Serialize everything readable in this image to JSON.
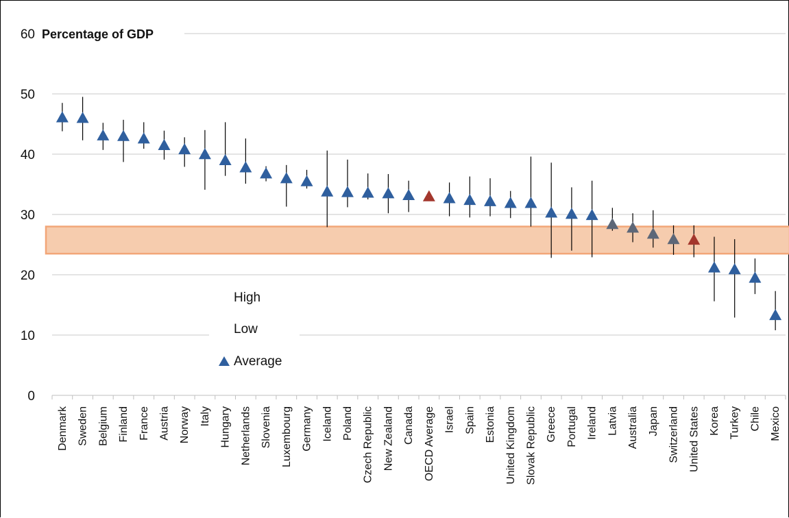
{
  "chart_data": {
    "type": "scatter",
    "title": "Percentage of GDP",
    "xlabel": "",
    "ylabel": "",
    "ylim": [
      0,
      60
    ],
    "yticks": [
      0,
      10,
      20,
      30,
      40,
      50,
      60
    ],
    "grid": true,
    "legend_placement": "lower-left",
    "legend": [
      "High",
      "Low",
      "Average"
    ],
    "highlight_band": [
      23.5,
      28
    ],
    "colors": {
      "marker": "#2f5f9e",
      "highlight_marker": "#a3372d",
      "muted_marker": "#5d6778",
      "band_fill": "#f6ccae",
      "band_stroke": "#f2a678",
      "whisker": "#000000",
      "grid": "#c8c8c8"
    },
    "categories": [
      "Denmark",
      "Sweden",
      "Belgium",
      "Finland",
      "France",
      "Austria",
      "Norway",
      "Italy",
      "Hungary",
      "Netherlands",
      "Slovenia",
      "Luxembourg",
      "Germany",
      "Iceland",
      "Poland",
      "Czech Republic",
      "New Zealand",
      "Canada",
      "OECD Average",
      "Israel",
      "Spain",
      "Estonia",
      "United Kingdom",
      "Slovak Republic",
      "Greece",
      "Portugal",
      "Ireland",
      "Latvia",
      "Australia",
      "Japan",
      "Switzerland",
      "United States",
      "Korea",
      "Turkey",
      "Chile",
      "Mexico"
    ],
    "series": [
      {
        "name": "High",
        "values": [
          48.5,
          49.5,
          45.2,
          45.7,
          45.3,
          43.9,
          42.8,
          44.0,
          45.3,
          42.6,
          38.0,
          38.2,
          37.4,
          40.6,
          39.1,
          36.8,
          36.7,
          35.6,
          33.5,
          35.3,
          36.3,
          36.0,
          33.9,
          39.6,
          38.6,
          34.5,
          35.6,
          31.1,
          30.2,
          30.7,
          28.2,
          28.2,
          26.3,
          25.9,
          22.7,
          17.3
        ]
      },
      {
        "name": "Low",
        "values": [
          43.8,
          42.3,
          40.7,
          38.7,
          40.9,
          39.1,
          37.9,
          34.1,
          36.4,
          35.1,
          35.5,
          31.3,
          34.3,
          27.9,
          31.2,
          32.5,
          30.2,
          30.4,
          32.3,
          29.7,
          29.5,
          29.7,
          29.4,
          28.0,
          22.8,
          24.0,
          22.9,
          27.3,
          25.4,
          24.5,
          23.3,
          22.9,
          15.6,
          12.9,
          16.8,
          10.8
        ]
      },
      {
        "name": "Average",
        "values": [
          46.1,
          46.0,
          43.1,
          43.0,
          42.6,
          41.5,
          40.8,
          40.0,
          39.0,
          37.8,
          36.8,
          36.0,
          35.5,
          33.8,
          33.7,
          33.6,
          33.5,
          33.2,
          33.0,
          32.7,
          32.4,
          32.2,
          31.9,
          31.9,
          30.3,
          30.1,
          29.9,
          28.4,
          27.8,
          26.8,
          25.9,
          25.8,
          21.2,
          20.9,
          19.5,
          13.3
        ]
      }
    ],
    "highlighted_categories": [
      "OECD Average",
      "United States"
    ],
    "muted_categories": [
      "Latvia",
      "Australia",
      "Japan",
      "Switzerland"
    ]
  }
}
